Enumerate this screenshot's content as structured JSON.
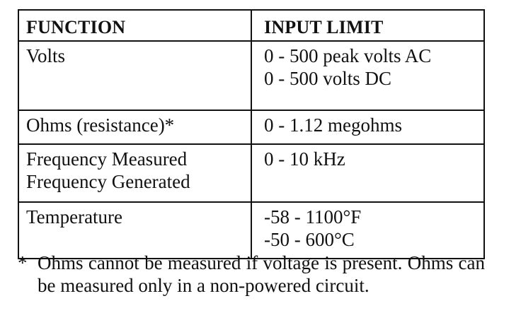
{
  "table": {
    "headers": {
      "function": "FUNCTION",
      "input_limit": "INPUT LIMIT"
    },
    "rows": [
      {
        "function": [
          "Volts"
        ],
        "limit": [
          "0 - 500 peak volts AC",
          "0 - 500 volts DC"
        ]
      },
      {
        "function": [
          "Ohms (resistance)*"
        ],
        "limit": [
          "0 - 1.12 megohms"
        ]
      },
      {
        "function": [
          "Frequency Measured",
          "Frequency Generated"
        ],
        "limit": [
          "0 - 10 kHz"
        ]
      },
      {
        "function": [
          "Temperature"
        ],
        "limit": [
          "-58 - 1100°F",
          "-50 - 600°C"
        ]
      }
    ]
  },
  "footnote": {
    "marker": "*",
    "text": "Ohms cannot be measured if voltage is present. Ohms can be measured only in a non-powered circuit."
  }
}
